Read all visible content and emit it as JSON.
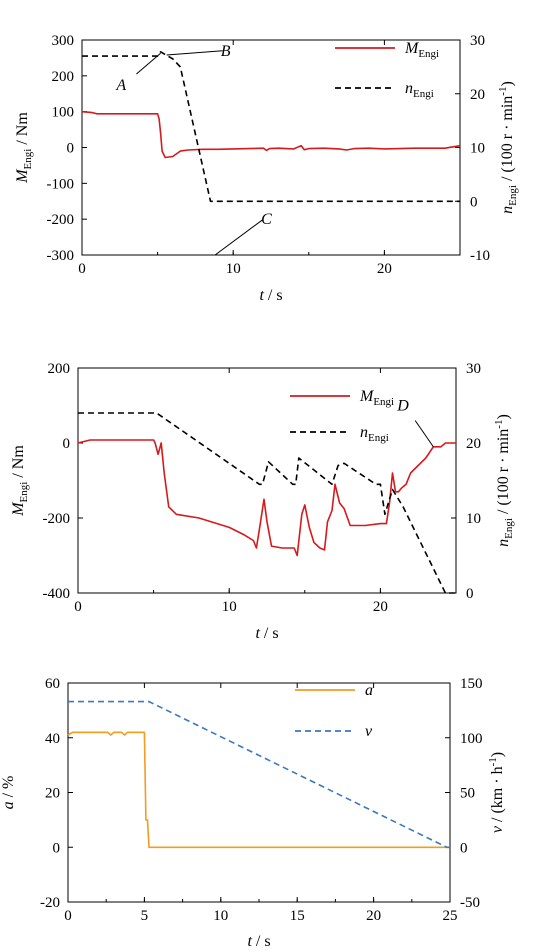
{
  "colors": {
    "red": "#d7191c",
    "black": "#000000",
    "orange": "#f39c1f",
    "blue": "#3a78c0"
  },
  "chart_data": [
    {
      "type": "line",
      "xlabel_t": "t",
      "xlabel_unit": " / s",
      "xlim": [
        0,
        25
      ],
      "xticks": [
        "0",
        "10",
        "20"
      ],
      "ylim_left": [
        -300,
        300
      ],
      "yticks_left": [
        "300",
        "200",
        "100",
        "0",
        "-100",
        "-200",
        "-300"
      ],
      "ylabel_left_main": "M",
      "ylabel_left_sub": "Engi",
      "ylabel_left_unit": " / Nm",
      "ylim_right": [
        -10,
        30
      ],
      "yticks_right": [
        "30",
        "20",
        "10",
        "0",
        "-10"
      ],
      "ylabel_right_main": "n",
      "ylabel_right_sub": "Engi",
      "ylabel_right_unit": " / (100 r · min",
      "ylabel_right_sup": "-1",
      "ylabel_right_close": ")",
      "legend": [
        {
          "main": "M",
          "sub": "Engi",
          "style": "solid",
          "color": "#d7191c"
        },
        {
          "main": "n",
          "sub": "Engi",
          "style": "dashed",
          "color": "#000000"
        }
      ],
      "series": [
        {
          "name": "M_Engi",
          "axis": "left",
          "style": "solid",
          "color": "#d7191c",
          "x": [
            0,
            0.6,
            1,
            2,
            3,
            4,
            5,
            5.1,
            5.2,
            5.3,
            5.5,
            6,
            6.5,
            7,
            8,
            9,
            10,
            11,
            12,
            12.2,
            12.4,
            13,
            14,
            14.5,
            14.7,
            15,
            16,
            17,
            17.5,
            18,
            19,
            20,
            21,
            22,
            23,
            24,
            25
          ],
          "y": [
            100,
            98,
            94,
            94,
            94,
            94,
            94,
            80,
            40,
            -10,
            -28,
            -25,
            -10,
            -7,
            -5,
            -5,
            -4,
            -3,
            -2,
            -8,
            -3,
            -2,
            -4,
            5,
            -6,
            -3,
            -2,
            -4,
            -7,
            -3,
            -2,
            -4,
            -3,
            -2,
            -2,
            -2,
            5
          ]
        },
        {
          "name": "n_Engi",
          "axis": "right",
          "style": "dashed",
          "color": "#000000",
          "x": [
            0,
            5,
            5.2,
            6,
            6.5,
            8.5,
            9,
            25
          ],
          "y": [
            27,
            27,
            27.8,
            26.5,
            25,
            0,
            0,
            0
          ]
        }
      ],
      "annotations": [
        {
          "text": "A",
          "x": 2.6,
          "y": 175,
          "lx1": 3.6,
          "ly1": 205,
          "lx2": 5.2,
          "ly2": 263
        },
        {
          "text": "B",
          "x": 9.5,
          "y": 270,
          "lx1": 9.3,
          "ly1": 270,
          "lx2": 5.6,
          "ly2": 258
        },
        {
          "text": "C",
          "x": 12.2,
          "y": -200,
          "lx1": 12,
          "ly1": -200,
          "lx2": 8.8,
          "ly2": -300
        }
      ]
    },
    {
      "type": "line",
      "xlabel_t": "t",
      "xlabel_unit": " / s",
      "xlim": [
        0,
        25
      ],
      "xticks": [
        "0",
        "10",
        "20"
      ],
      "ylim_left": [
        -400,
        200
      ],
      "yticks_left": [
        "200",
        "0",
        "-200",
        "-400"
      ],
      "ylabel_left_main": "M",
      "ylabel_left_sub": "Engi",
      "ylabel_left_unit": " / Nm",
      "ylim_right": [
        0,
        30
      ],
      "yticks_right": [
        "30",
        "20",
        "10",
        "0"
      ],
      "ylabel_right_main": "n",
      "ylabel_right_sub": "Engi",
      "ylabel_right_unit": " / (100 r · min",
      "ylabel_right_sup": "-1",
      "ylabel_right_close": ")",
      "legend": [
        {
          "main": "M",
          "sub": "Engi",
          "style": "solid",
          "color": "#d7191c"
        },
        {
          "main": "n",
          "sub": "Engi",
          "style": "dashed",
          "color": "#000000"
        }
      ],
      "series": [
        {
          "name": "M_Engi",
          "axis": "left",
          "style": "solid",
          "color": "#d7191c",
          "x": [
            0,
            0.8,
            2,
            3,
            4,
            5,
            5.1,
            5.3,
            5.5,
            5.7,
            6,
            6.5,
            8,
            10,
            11,
            11.6,
            11.8,
            12,
            12.3,
            12.5,
            12.8,
            13.5,
            14.3,
            14.5,
            14.8,
            15,
            15.3,
            15.6,
            16,
            16.3,
            16.5,
            16.8,
            17,
            17.3,
            17.6,
            18,
            18.5,
            19,
            20,
            20.4,
            20.6,
            20.8,
            21,
            21.2,
            21.4,
            21.7,
            22,
            23,
            23.5,
            24,
            24.3,
            25
          ],
          "y": [
            0,
            8,
            8,
            8,
            8,
            8,
            0,
            -30,
            0,
            -80,
            -170,
            -190,
            -200,
            -225,
            -245,
            -260,
            -280,
            -230,
            -150,
            -210,
            -275,
            -280,
            -280,
            -300,
            -190,
            -165,
            -225,
            -265,
            -280,
            -285,
            -210,
            -180,
            -110,
            -160,
            -175,
            -220,
            -220,
            -220,
            -215,
            -215,
            -160,
            -80,
            -130,
            -130,
            -120,
            -110,
            -80,
            -40,
            -10,
            -10,
            0,
            0
          ]
        },
        {
          "name": "n_Engi",
          "axis": "right",
          "style": "dashed",
          "color": "#000000",
          "x": [
            0,
            2,
            4,
            5,
            5.2,
            12,
            12.2,
            12.6,
            14.2,
            14.4,
            14.6,
            16.8,
            17.2,
            17.6,
            19.7,
            20,
            20.3,
            20.8,
            21.5,
            24.3,
            25
          ],
          "y": [
            24,
            24,
            24,
            24,
            24,
            14.5,
            14.5,
            17.5,
            14.5,
            14.5,
            18,
            14.5,
            17,
            17.3,
            14.5,
            14.5,
            10.5,
            13.8,
            11.5,
            0,
            0
          ]
        }
      ],
      "annotations": [
        {
          "text": "D",
          "x": 21.5,
          "y": 100,
          "lx1": 22.3,
          "ly1": 60,
          "lx2": 23.5,
          "ly2": -10
        }
      ]
    },
    {
      "type": "line",
      "xlabel_t": "t",
      "xlabel_unit": " / s",
      "xlim": [
        0,
        25
      ],
      "xticks": [
        "0",
        "5",
        "10",
        "15",
        "20",
        "25"
      ],
      "ylim_left": [
        -20,
        60
      ],
      "yticks_left": [
        "60",
        "40",
        "20",
        "0",
        "-20"
      ],
      "ylabel_left_main": "a",
      "ylabel_left_sub": "",
      "ylabel_left_unit": " / %",
      "ylim_right": [
        -50,
        150
      ],
      "yticks_right": [
        "150",
        "100",
        "50",
        "0",
        "-50"
      ],
      "ylabel_right_main": "v",
      "ylabel_right_sub": "",
      "ylabel_right_unit": " / (km · h",
      "ylabel_right_sup": "-1",
      "ylabel_right_close": ")",
      "legend": [
        {
          "main": "a",
          "sub": "",
          "style": "solid",
          "color": "#f39c1f"
        },
        {
          "main": "v",
          "sub": "",
          "style": "dashed",
          "color": "#3a78c0"
        }
      ],
      "series": [
        {
          "name": "a",
          "axis": "left",
          "style": "solid",
          "color": "#f39c1f",
          "x": [
            0,
            0.3,
            2,
            2.6,
            2.8,
            3,
            3.5,
            3.7,
            3.9,
            4.2,
            5,
            5.1,
            5.2,
            5.3,
            25
          ],
          "y": [
            41,
            42,
            42,
            42,
            41,
            42,
            42,
            41,
            42,
            42,
            42,
            10,
            10,
            0,
            0
          ]
        },
        {
          "name": "v",
          "axis": "right",
          "style": "dashed",
          "color": "#3a78c0",
          "x": [
            0,
            5.3,
            24.8,
            25
          ],
          "y": [
            133,
            133,
            0,
            0
          ]
        }
      ],
      "annotations": []
    }
  ]
}
